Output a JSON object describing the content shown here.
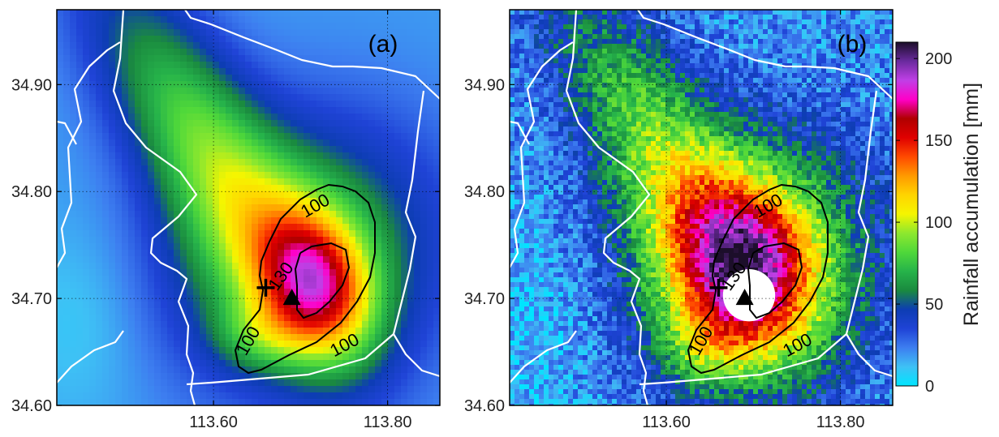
{
  "chart_data": [
    {
      "type": "heatmap",
      "panel_label": "(a)",
      "xlim": [
        113.42,
        113.86
      ],
      "ylim": [
        34.6,
        34.97
      ],
      "x_ticks": [
        "113.60",
        "113.80"
      ],
      "x_tick_values": [
        113.6,
        113.8
      ],
      "y_ticks": [
        "34.60",
        "34.70",
        "34.80",
        "34.90"
      ],
      "y_tick_values": [
        34.6,
        34.7,
        34.8,
        34.9
      ],
      "grid": true,
      "contour_labels": [
        "100",
        "130",
        "100",
        "100"
      ],
      "markers": [
        {
          "symbol": "plus",
          "x": 113.66,
          "y": 34.71
        },
        {
          "symbol": "triangle",
          "x": 113.69,
          "y": 34.7
        }
      ],
      "rain_core": {
        "peak_mm": 155,
        "center": [
          113.74,
          34.715
        ]
      }
    },
    {
      "type": "heatmap",
      "panel_label": "(b)",
      "xlim": [
        113.42,
        113.86
      ],
      "ylim": [
        34.6,
        34.97
      ],
      "x_ticks": [
        "113.60",
        "113.80"
      ],
      "x_tick_values": [
        113.6,
        113.8
      ],
      "y_ticks": [
        "34.60",
        "34.70",
        "34.80",
        "34.90"
      ],
      "y_tick_values": [
        34.6,
        34.7,
        34.8,
        34.9
      ],
      "grid": true,
      "contour_labels": [
        "100",
        "130",
        "100",
        "100"
      ],
      "markers": [
        {
          "symbol": "plus",
          "x": 113.66,
          "y": 34.71
        },
        {
          "symbol": "triangle",
          "x": 113.69,
          "y": 34.7
        }
      ],
      "blank_region": {
        "center": [
          113.695,
          34.703
        ],
        "radius_deg": 0.03,
        "color": "#ffffff"
      },
      "rain_core": {
        "peak_mm": 170,
        "center": [
          113.7,
          34.72
        ]
      }
    }
  ],
  "colorbar": {
    "label": "Rainfall accumulation [mm]",
    "range": [
      0,
      210
    ],
    "ticks": [
      "0",
      "50",
      "100",
      "150",
      "200"
    ],
    "tick_values": [
      0,
      50,
      100,
      150,
      200
    ],
    "colors": [
      "#00e5ff",
      "#3ec1f5",
      "#3d7ef0",
      "#1f43d6",
      "#0d3db3",
      "#1a8a3f",
      "#26b34a",
      "#4fd83a",
      "#8de82e",
      "#f5f500",
      "#ffd400",
      "#ff9a00",
      "#ff4a00",
      "#e00000",
      "#b00000",
      "#ff00c8",
      "#c03fe6",
      "#6a2a9e",
      "#1c0e2a"
    ]
  }
}
